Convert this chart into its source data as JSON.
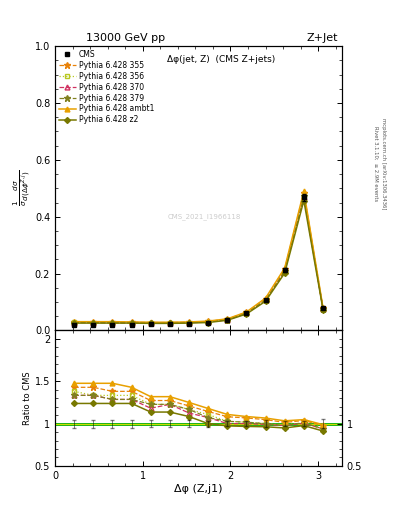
{
  "title_top": "13000 GeV pp",
  "title_right": "Z+Jet",
  "subplot_title": "Δφ(jet, Z)  (CMS Z+jets)",
  "xlabel": "Δφ (Z,j1)",
  "ylabel_main": "$\\frac{1}{\\sigma}\\frac{d\\sigma}{d(\\Delta\\phi^{Z,j})}$",
  "ylabel_ratio": "Ratio to CMS",
  "watermark": "CMS_2021_I1966118",
  "right_label": "Rivet 3.1.10;  ≥ 2.9M events",
  "right_label2": "mcplots.cern.ch [arXiv:1306.3436]",
  "cms_x": [
    0.218,
    0.436,
    0.655,
    0.873,
    1.091,
    1.309,
    1.527,
    1.745,
    1.964,
    2.182,
    2.4,
    2.618,
    2.836,
    3.055
  ],
  "cms_y": [
    0.021,
    0.021,
    0.021,
    0.021,
    0.022,
    0.022,
    0.024,
    0.028,
    0.037,
    0.06,
    0.107,
    0.213,
    0.468,
    0.08
  ],
  "cms_yerr": [
    0.001,
    0.001,
    0.001,
    0.001,
    0.001,
    0.001,
    0.001,
    0.001,
    0.001,
    0.002,
    0.004,
    0.007,
    0.012,
    0.004
  ],
  "py355_y": [
    0.03,
    0.03,
    0.029,
    0.029,
    0.028,
    0.028,
    0.029,
    0.032,
    0.04,
    0.064,
    0.112,
    0.216,
    0.485,
    0.078
  ],
  "py356_y": [
    0.029,
    0.028,
    0.028,
    0.028,
    0.027,
    0.027,
    0.028,
    0.031,
    0.038,
    0.061,
    0.107,
    0.209,
    0.474,
    0.076
  ],
  "py370_y": [
    0.028,
    0.028,
    0.027,
    0.027,
    0.026,
    0.027,
    0.027,
    0.03,
    0.037,
    0.06,
    0.106,
    0.208,
    0.47,
    0.075
  ],
  "py379_y": [
    0.028,
    0.028,
    0.027,
    0.027,
    0.027,
    0.027,
    0.028,
    0.03,
    0.038,
    0.061,
    0.107,
    0.208,
    0.472,
    0.075
  ],
  "pyambt1_y": [
    0.031,
    0.031,
    0.031,
    0.03,
    0.029,
    0.029,
    0.03,
    0.033,
    0.041,
    0.065,
    0.114,
    0.22,
    0.49,
    0.079
  ],
  "pyz2_y": [
    0.026,
    0.026,
    0.026,
    0.026,
    0.025,
    0.025,
    0.026,
    0.028,
    0.036,
    0.058,
    0.103,
    0.202,
    0.457,
    0.073
  ],
  "color_355": "#e8820a",
  "color_356": "#b8c820",
  "color_370": "#d03060",
  "color_379": "#808020",
  "color_ambt1": "#e8a000",
  "color_z2": "#787800",
  "ylim_main": [
    0.0,
    1.0
  ],
  "ylim_ratio": [
    0.5,
    2.1
  ],
  "xlim": [
    0.0,
    3.27
  ],
  "yticks_main": [
    0.0,
    0.2,
    0.4,
    0.6,
    0.8,
    1.0
  ],
  "yticks_ratio": [
    0.5,
    1.0,
    1.5,
    2.0
  ],
  "xticks": [
    0,
    1,
    2,
    3
  ]
}
